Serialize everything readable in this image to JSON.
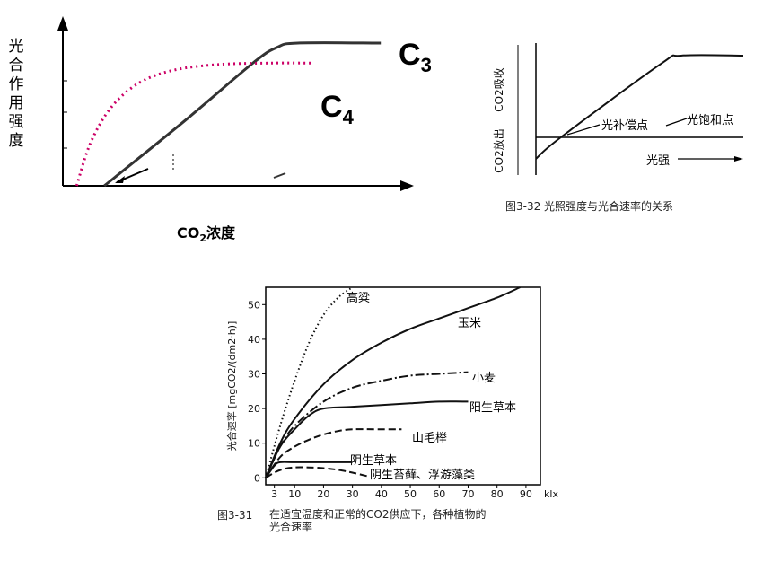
{
  "chart_data": [
    {
      "type": "line",
      "ylabel": "光合作用强度",
      "xlabel": "CO2浓度",
      "series": [
        {
          "name": "C3",
          "color": "#333333",
          "style": "solid",
          "x": [
            0.12,
            0.35,
            0.55,
            0.62,
            0.68,
            0.92
          ],
          "y": [
            0.0,
            0.45,
            0.86,
            0.97,
            1.0,
            1.0
          ]
        },
        {
          "name": "C4",
          "color": "#cc0066",
          "style": "dotted",
          "x": [
            0.04,
            0.08,
            0.14,
            0.22,
            0.32,
            0.45,
            0.6,
            0.72
          ],
          "y": [
            0.0,
            0.3,
            0.55,
            0.72,
            0.81,
            0.85,
            0.86,
            0.86
          ]
        }
      ]
    },
    {
      "type": "line",
      "ylabel_top": "CO2吸收",
      "ylabel_bottom": "CO2放出",
      "xlabel": "光强",
      "annotations": [
        "光补偿点",
        "光饱和点"
      ],
      "caption": "图3-32  光照强度与光合速率的关系",
      "series": [
        {
          "name": "",
          "x": [
            0,
            0.12,
            0.6,
            0.7,
            1.0
          ],
          "y": [
            -0.25,
            0.0,
            0.85,
            0.95,
            0.95
          ]
        }
      ]
    },
    {
      "type": "line",
      "ylabel": "光合速率 [mgCO2/(dm2·h)]",
      "xlabel": "klx",
      "x_ticks": [
        "3",
        "10",
        "20",
        "30",
        "40",
        "50",
        "60",
        "70",
        "80",
        "90"
      ],
      "y_ticks": [
        "0",
        "10",
        "20",
        "30",
        "40",
        "50"
      ],
      "xlim": [
        0,
        95
      ],
      "ylim": [
        -2,
        55
      ],
      "caption_num": "图3-31",
      "caption_line1": "在适宜温度和正常的CO2供应下，各种植物的",
      "caption_line2": "光合速率",
      "series": [
        {
          "name": "高粱",
          "style": "dotted",
          "x": [
            0,
            5,
            10,
            15,
            20,
            25,
            30
          ],
          "y": [
            0,
            15,
            28,
            39,
            47,
            52,
            55
          ]
        },
        {
          "name": "玉米",
          "style": "solid",
          "x": [
            0,
            5,
            10,
            20,
            30,
            40,
            50,
            60,
            70,
            80,
            88
          ],
          "y": [
            0,
            10,
            17,
            27,
            34,
            39,
            43,
            46,
            49,
            52,
            55
          ]
        },
        {
          "name": "小麦",
          "style": "dashdot",
          "x": [
            0,
            5,
            10,
            20,
            30,
            40,
            50,
            60,
            70
          ],
          "y": [
            0,
            9,
            15,
            22,
            26,
            28,
            29.5,
            30,
            30.5
          ]
        },
        {
          "name": "阳生草本",
          "style": "solid",
          "x": [
            0,
            5,
            10,
            15,
            20,
            30,
            40,
            50,
            60,
            70
          ],
          "y": [
            0,
            9,
            14,
            18,
            20,
            20.5,
            21,
            21.5,
            22,
            22
          ]
        },
        {
          "name": "山毛榉",
          "style": "dashed",
          "x": [
            0,
            5,
            10,
            15,
            20,
            25,
            30,
            40,
            47
          ],
          "y": [
            0,
            6,
            9,
            11,
            12.5,
            13.5,
            14,
            14,
            14
          ]
        },
        {
          "name": "阴生草本",
          "style": "solid",
          "x": [
            0,
            3,
            5,
            10,
            20,
            30
          ],
          "y": [
            0,
            3.5,
            4.5,
            4.5,
            4.5,
            4.5
          ]
        },
        {
          "name": "阴生苔藓、浮游藻类",
          "style": "dashed",
          "x": [
            0,
            3,
            6,
            10,
            15,
            20,
            25,
            30,
            35
          ],
          "y": [
            0,
            1.5,
            2.5,
            3,
            3,
            2.8,
            2.3,
            1.5,
            0.5
          ]
        }
      ]
    }
  ]
}
